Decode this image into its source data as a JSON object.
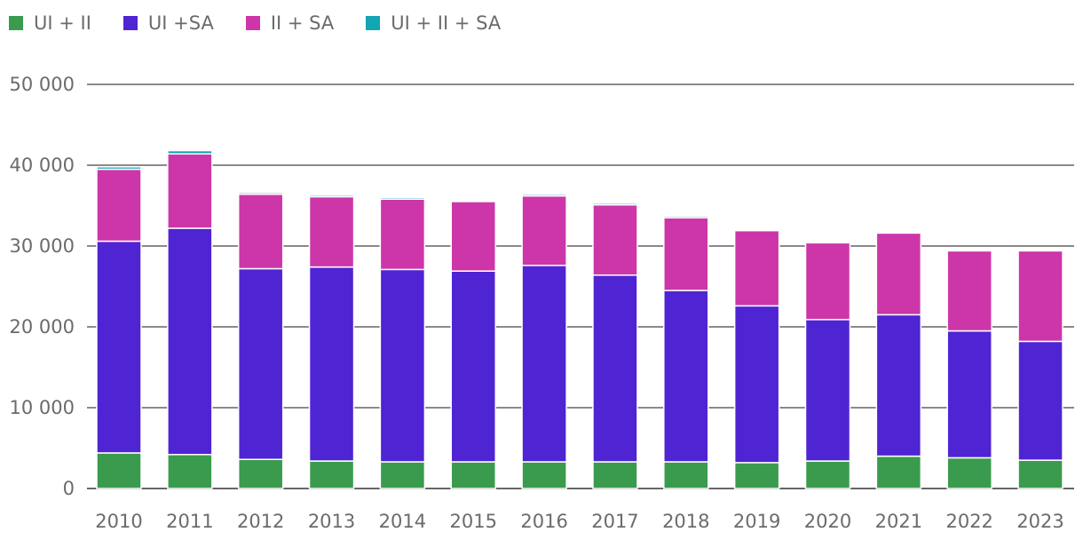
{
  "chart_data": {
    "type": "bar",
    "stacked": true,
    "categories": [
      "2010",
      "2011",
      "2012",
      "2013",
      "2014",
      "2015",
      "2016",
      "2017",
      "2018",
      "2019",
      "2020",
      "2021",
      "2022",
      "2023"
    ],
    "series": [
      {
        "name": "UI + II",
        "color": "#3a9b4e",
        "values": [
          4400,
          4200,
          3600,
          3400,
          3300,
          3300,
          3300,
          3300,
          3300,
          3200,
          3400,
          4000,
          3800,
          3500
        ]
      },
      {
        "name": "UI +SA",
        "color": "#4f24d2",
        "values": [
          26200,
          28000,
          23600,
          24000,
          23800,
          23600,
          24300,
          23100,
          21200,
          19400,
          17500,
          17500,
          15700,
          14700
        ]
      },
      {
        "name": "II + SA",
        "color": "#cc36a8",
        "values": [
          8900,
          9200,
          9200,
          8700,
          8700,
          8600,
          8600,
          8700,
          9000,
          9300,
          9500,
          10100,
          9900,
          11200
        ]
      },
      {
        "name": "UI + II + SA",
        "color": "#12a5b4",
        "values": [
          300,
          400,
          200,
          200,
          200,
          0,
          200,
          200,
          200,
          0,
          0,
          0,
          0,
          0
        ]
      }
    ],
    "y_ticks": [
      "0",
      "10 000",
      "20 000",
      "30 000",
      "40 000",
      "50 000"
    ],
    "ylim": [
      0,
      50000
    ],
    "grid": true,
    "legend_position": "top-left"
  }
}
